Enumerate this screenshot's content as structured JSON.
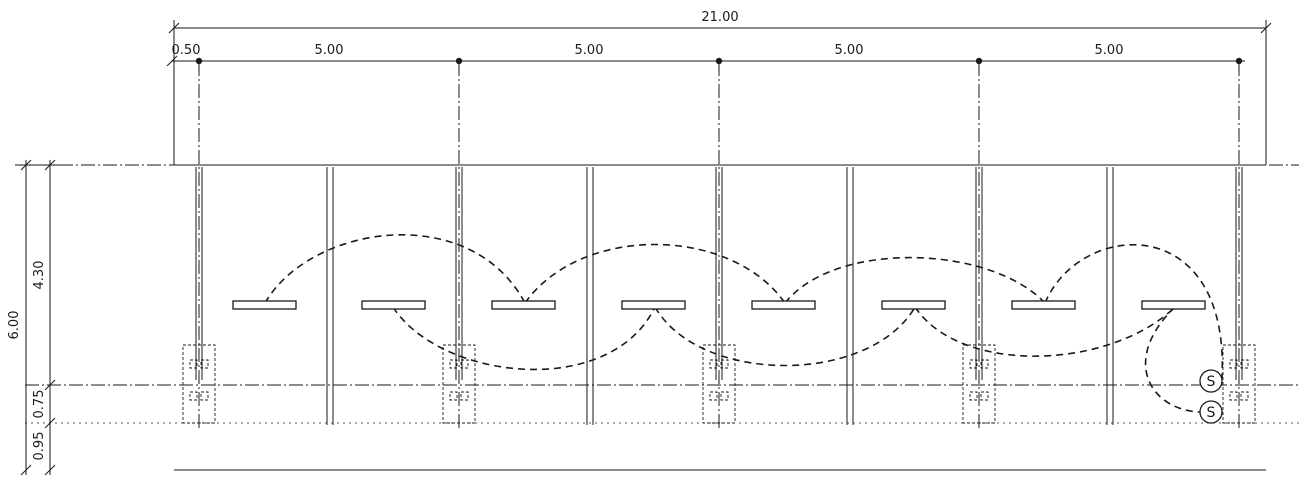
{
  "drawing": {
    "dimensions_horizontal": {
      "overall": "21.00",
      "offset": "0.50",
      "spans": [
        "5.00",
        "5.00",
        "5.00",
        "5.00"
      ]
    },
    "dimensions_vertical": {
      "overall": "6.00",
      "upper": "4.30",
      "middle": "0.75",
      "lower": "0.95"
    },
    "switch_symbol": "S"
  }
}
